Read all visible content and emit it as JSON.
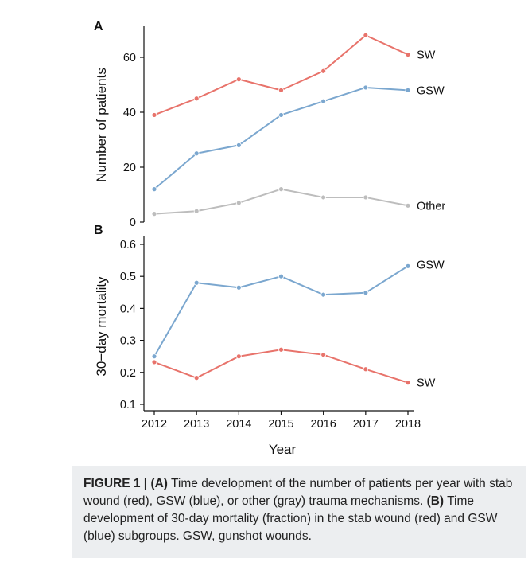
{
  "chart_data": [
    {
      "panel": "A",
      "type": "line",
      "ylabel": "Number of patients",
      "ylim": [
        0,
        70
      ],
      "yticks": [
        "0",
        "20",
        "40",
        "60"
      ],
      "x": [
        2012,
        2013,
        2014,
        2015,
        2016,
        2017,
        2018
      ],
      "series": [
        {
          "name": "SW",
          "color": "#e8736b",
          "values": [
            39,
            45,
            52,
            48,
            55,
            68,
            61
          ]
        },
        {
          "name": "GSW",
          "color": "#7ba7cf",
          "values": [
            12,
            25,
            28,
            39,
            44,
            49,
            48
          ]
        },
        {
          "name": "Other",
          "color": "#bdbdbd",
          "values": [
            3,
            4,
            7,
            12,
            9,
            9,
            6
          ]
        }
      ]
    },
    {
      "panel": "B",
      "type": "line",
      "ylabel": "30−day mortality",
      "xlabel": "Year",
      "ylim": [
        0.1,
        0.6
      ],
      "yticks": [
        "0.1",
        "0.2",
        "0.3",
        "0.4",
        "0.5",
        "0.6"
      ],
      "x": [
        2012,
        2013,
        2014,
        2015,
        2016,
        2017,
        2018
      ],
      "xticks": [
        "2012",
        "2013",
        "2014",
        "2015",
        "2016",
        "2017",
        "2018"
      ],
      "series": [
        {
          "name": "GSW",
          "color": "#7ba7cf",
          "values": [
            0.25,
            0.48,
            0.465,
            0.5,
            0.443,
            0.449,
            0.532
          ]
        },
        {
          "name": "SW",
          "color": "#e8736b",
          "values": [
            0.232,
            0.183,
            0.25,
            0.271,
            0.255,
            0.21,
            0.168
          ]
        }
      ]
    }
  ],
  "caption": {
    "label": "FIGURE 1 |",
    "a_tag": "(A)",
    "a_text": "Time development of the number of patients per year with stab wound (red), GSW (blue), or other (gray) trauma mechanisms.",
    "b_tag": "(B)",
    "b_text": "Time development of 30-day mortality (fraction) in the stab wound (red) and GSW (blue) subgroups. GSW, gunshot wounds."
  }
}
